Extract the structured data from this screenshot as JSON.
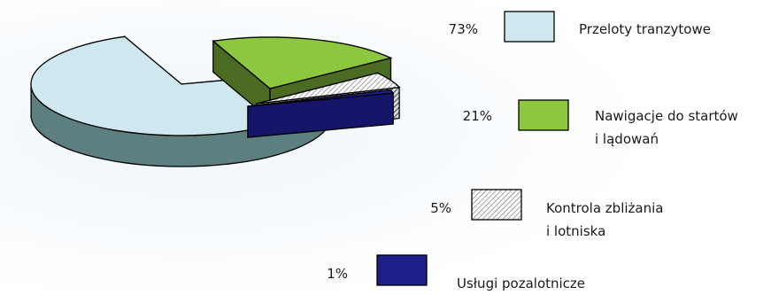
{
  "chart_data": {
    "type": "pie",
    "style": "3d-exploded",
    "title": "",
    "categories": [
      "Przeloty tranzytowe",
      "Nawigacje do startów i lądowań",
      "Kontrola zbliżania i lotniska",
      "Usługi pozalotnicze"
    ],
    "values": [
      73,
      21,
      5,
      1
    ],
    "value_labels": [
      "73%",
      "21%",
      "5%",
      "1%"
    ],
    "legend_lines": [
      [
        "Przeloty tranzytowe"
      ],
      [
        "Nawigacje do startów",
        "i lądowań"
      ],
      [
        "Kontrola zbliżania",
        "i lotniska"
      ],
      [
        "Usługi pozalotnicze"
      ]
    ],
    "colors": {
      "top": [
        "#cfe8ef",
        "#8dc63f",
        "hatch",
        "#1f1f8a"
      ],
      "side": [
        "#5e7f7f",
        "#4b6b23",
        "hatch-dark",
        "#15156a"
      ],
      "legend_fill": [
        "#cfe8ef",
        "#8dc63f",
        "hatch",
        "#1f1f8a"
      ]
    },
    "legend_placement": "right"
  }
}
